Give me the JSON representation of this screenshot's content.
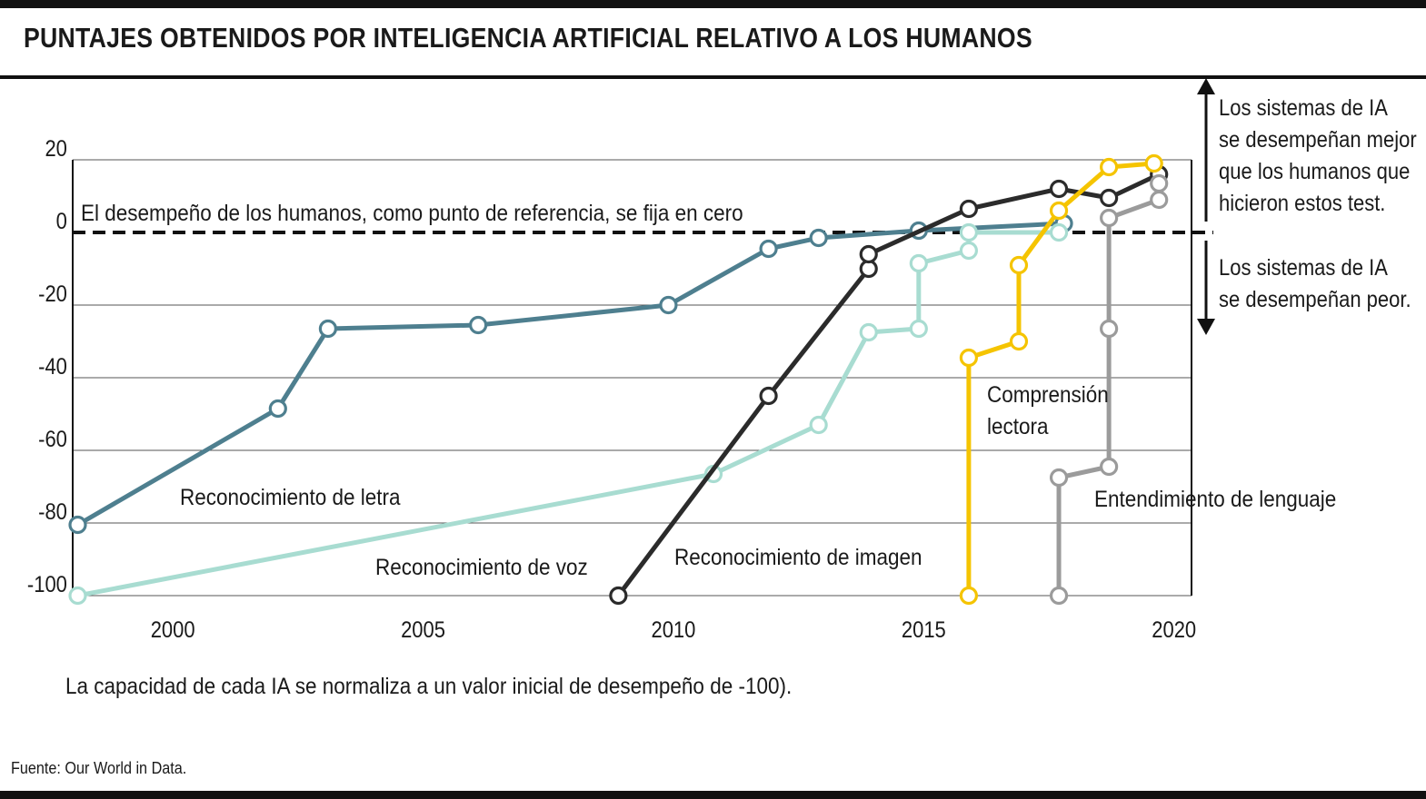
{
  "title": "PUNTAJES OBTENIDOS POR INTELIGENCIA ARTIFICIAL RELATIVO A LOS HUMANOS",
  "note": "La capacidad de cada IA se normaliza a un valor inicial de desempeño de -100).",
  "source": "Fuente: Our World in Data.",
  "side_labels": {
    "better": [
      "Los sistemas de IA",
      "se desempeñan mejor",
      "que los humanos que",
      "hicieron estos test."
    ],
    "worse": [
      "Los sistemas de IA",
      "se desempeñan peor."
    ]
  },
  "chart_data": {
    "type": "line",
    "xlim": [
      1998,
      2021
    ],
    "ylim": [
      -100,
      20
    ],
    "x_ticks": [
      "2000",
      "2005",
      "2010",
      "2015",
      "2020"
    ],
    "y_ticks": [
      "20",
      "0",
      "-20",
      "-40",
      "-60",
      "-80",
      "-100"
    ],
    "grid": true,
    "reference_line": {
      "y": 0,
      "label": "El desempeño de los humanos, como punto de referencia, se fija en cero"
    },
    "series": [
      {
        "name": "Reconocimiento de letra",
        "color": "#4e7f8f",
        "points": [
          [
            1998.1,
            -80.5
          ],
          [
            2002.1,
            -48.5
          ],
          [
            2003.1,
            -26.5
          ],
          [
            2006.1,
            -25.5
          ],
          [
            2009.9,
            -20
          ],
          [
            2011.9,
            -4.5
          ],
          [
            2012.9,
            -1.5
          ],
          [
            2014.9,
            0.5
          ],
          [
            2017.8,
            2.5
          ]
        ]
      },
      {
        "name": "Reconocimiento de voz",
        "color": "#a8dcd1",
        "points": [
          [
            1998.1,
            -100
          ],
          [
            2010.8,
            -66.5
          ],
          [
            2012.9,
            -53
          ],
          [
            2013.9,
            -27.5
          ],
          [
            2014.9,
            -26.5
          ],
          [
            2014.9,
            -8.5
          ],
          [
            2015.9,
            -5
          ],
          [
            2015.9,
            0
          ],
          [
            2017.7,
            0
          ]
        ]
      },
      {
        "name": "Reconocimiento de imagen",
        "color": "#2b2b2b",
        "points": [
          [
            2008.9,
            -100
          ],
          [
            2011.9,
            -45
          ],
          [
            2013.9,
            -10
          ],
          [
            2013.9,
            -6
          ],
          [
            2015.9,
            6.5
          ],
          [
            2017.7,
            12
          ],
          [
            2018.7,
            9.5
          ],
          [
            2019.7,
            16
          ]
        ]
      },
      {
        "name": "Comprensión lectora",
        "color": "#f5c400",
        "points": [
          [
            2015.9,
            -100
          ],
          [
            2015.9,
            -34.5
          ],
          [
            2016.9,
            -30
          ],
          [
            2016.9,
            -9
          ],
          [
            2017.7,
            6
          ],
          [
            2018.7,
            18
          ],
          [
            2019.6,
            19
          ]
        ]
      },
      {
        "name": "Entendimiento de lenguaje",
        "color": "#9b9b9b",
        "points": [
          [
            2017.7,
            -100
          ],
          [
            2017.7,
            -67.5
          ],
          [
            2018.7,
            -64.5
          ],
          [
            2018.7,
            -26.5
          ],
          [
            2018.7,
            4
          ],
          [
            2019.7,
            9
          ],
          [
            2019.7,
            13.5
          ]
        ]
      }
    ]
  }
}
